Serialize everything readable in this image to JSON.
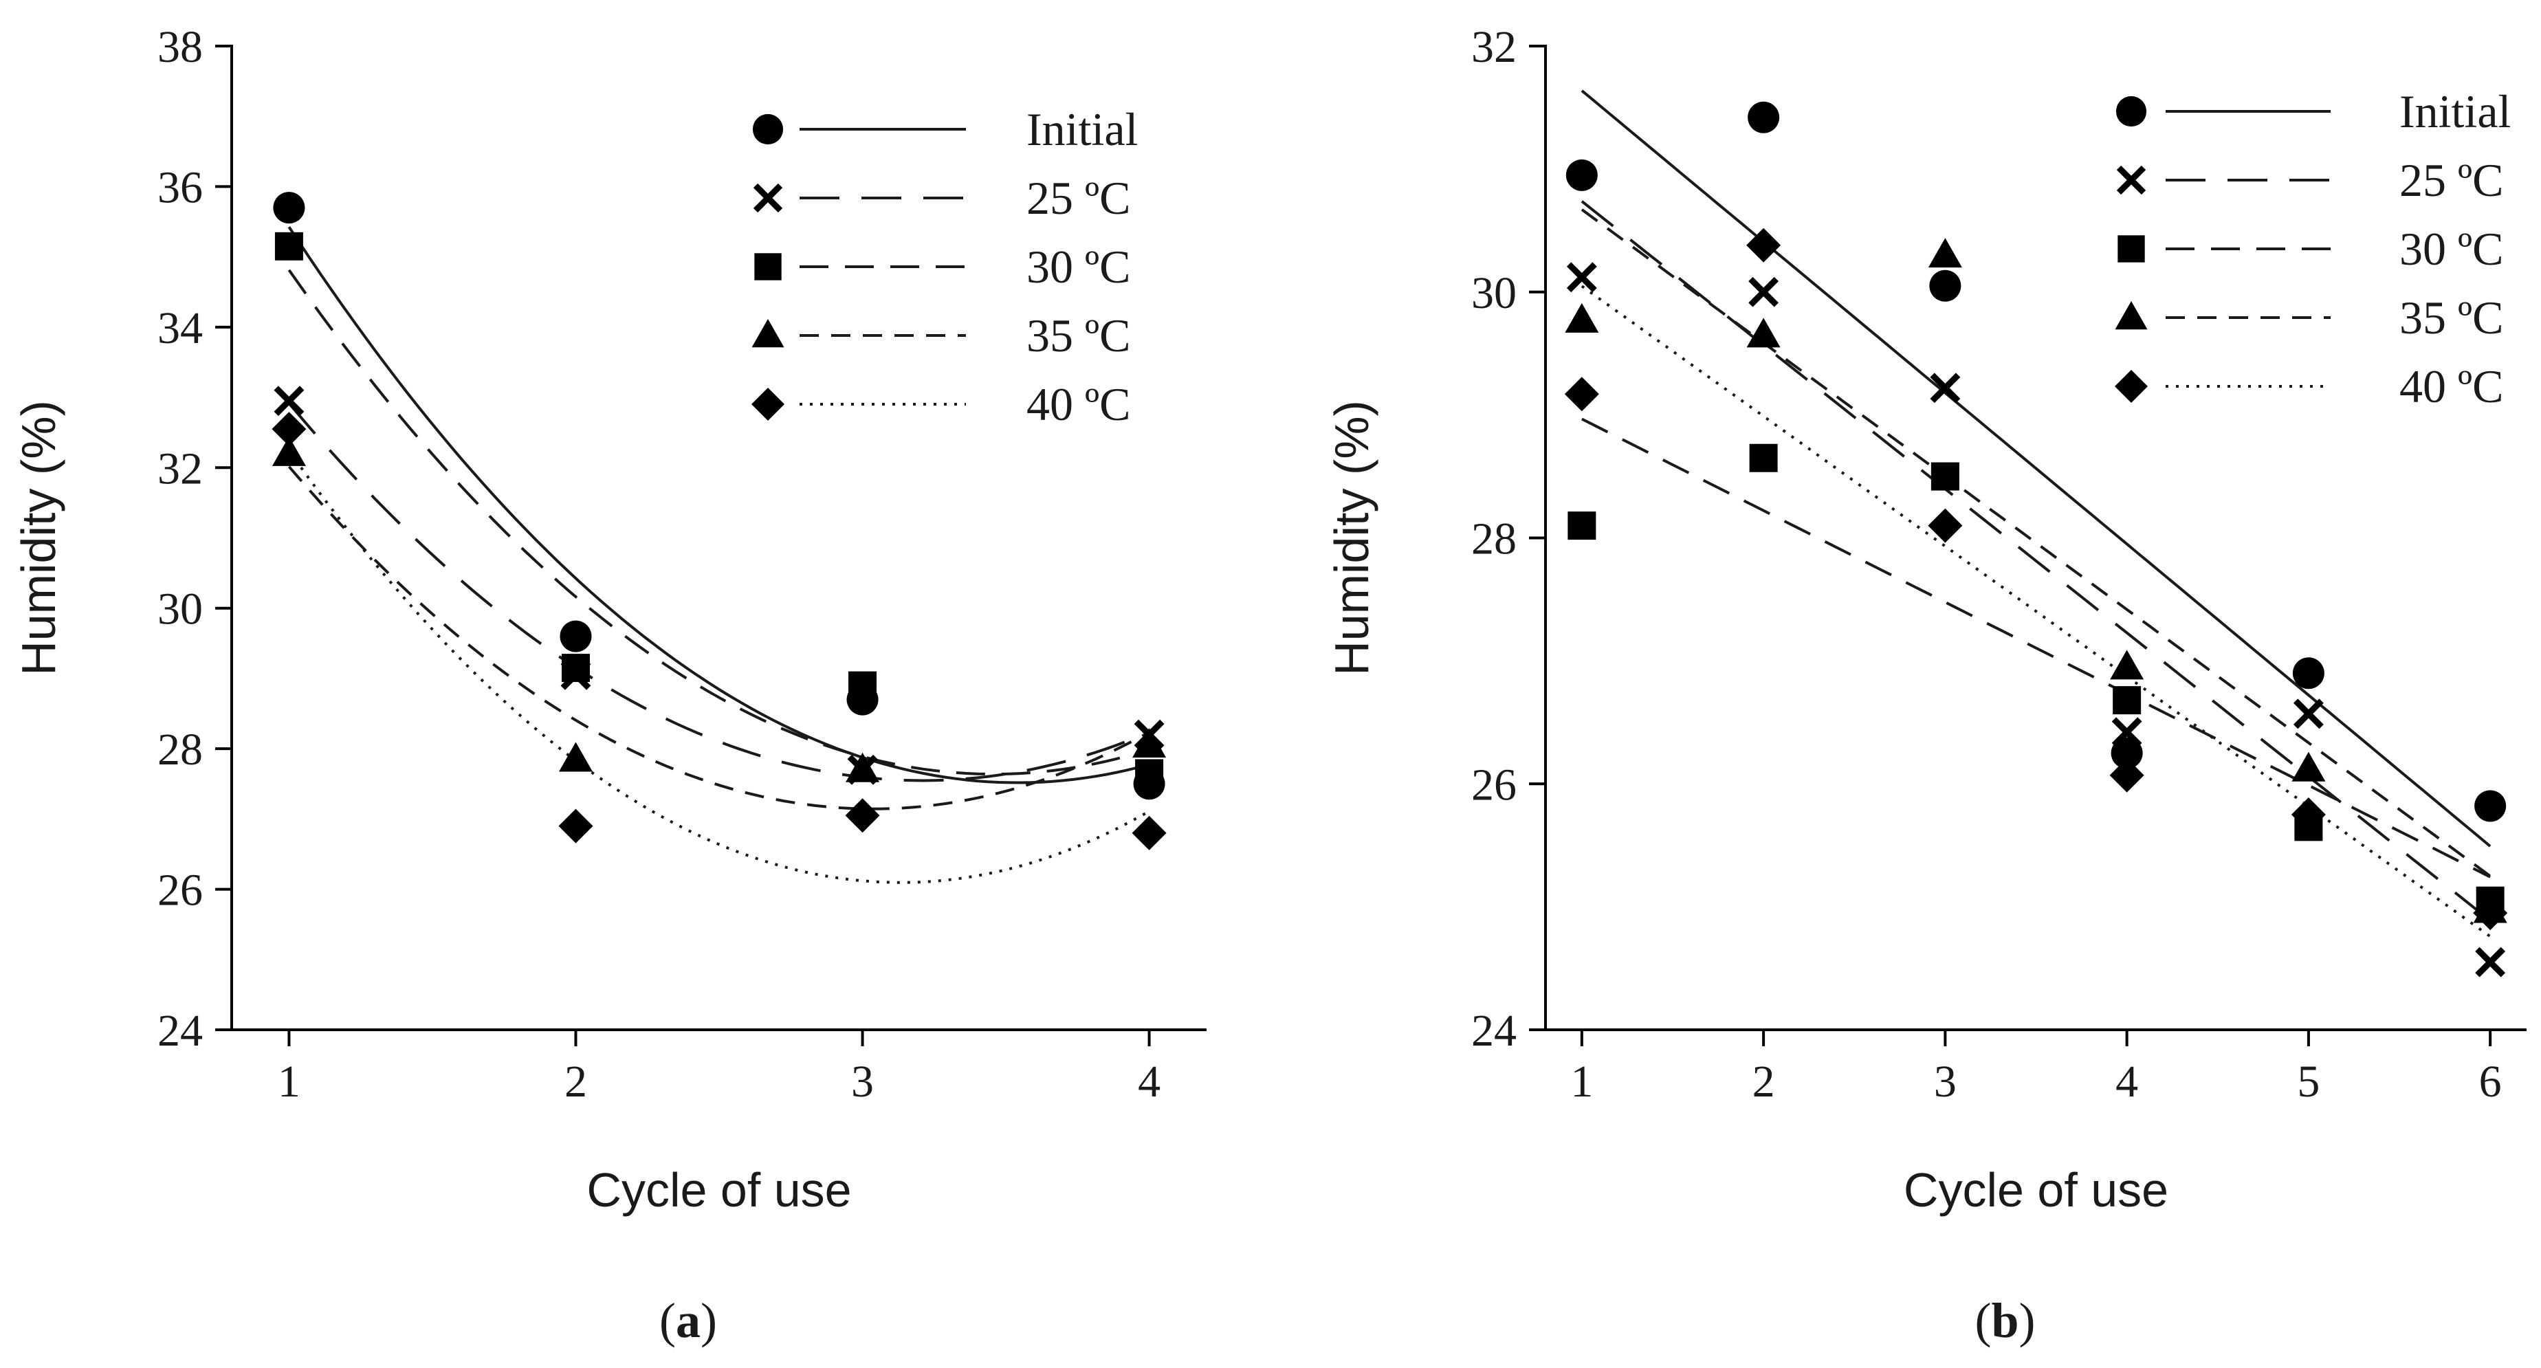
{
  "chart_data": [
    {
      "type": "scatter",
      "panel_label": {
        "open": "(",
        "letter": "a",
        "close": ")"
      },
      "xlabel": "Cycle of use",
      "ylabel": "Humidity (%)",
      "xlim": [
        0.8,
        4.2
      ],
      "ylim": [
        24,
        38
      ],
      "xticks": [
        1,
        2,
        3,
        4
      ],
      "yticks": [
        24,
        26,
        28,
        30,
        32,
        34,
        36,
        38
      ],
      "grid": false,
      "legend_position": "top-right",
      "fit": "quadratic",
      "x": [
        1,
        2,
        3,
        4
      ],
      "series": [
        {
          "name": "Initial",
          "marker": "circle",
          "line": "solid",
          "values": [
            35.7,
            29.6,
            28.7,
            27.5
          ]
        },
        {
          "name": "25 ºC",
          "marker": "x",
          "line": "long-dash",
          "values": [
            32.95,
            29.05,
            27.7,
            28.2
          ]
        },
        {
          "name": "30 ºC",
          "marker": "square",
          "line": "medium-dash",
          "values": [
            35.15,
            29.15,
            28.9,
            27.65
          ]
        },
        {
          "name": "35 ºC",
          "marker": "triangle",
          "line": "short-dash",
          "values": [
            32.2,
            27.85,
            27.7,
            28.05
          ]
        },
        {
          "name": "40 ºC",
          "marker": "diamond",
          "line": "dotted",
          "values": [
            32.55,
            26.9,
            27.05,
            26.8
          ]
        }
      ]
    },
    {
      "type": "scatter",
      "panel_label": {
        "open": "(",
        "letter": "b",
        "close": ")"
      },
      "xlabel": "Cycle of use",
      "ylabel": "Humidity (%)",
      "xlim": [
        0.8,
        6.2
      ],
      "ylim": [
        24,
        32
      ],
      "xticks": [
        1,
        2,
        3,
        4,
        5,
        6
      ],
      "yticks": [
        24,
        26,
        28,
        30,
        32
      ],
      "grid": false,
      "legend_position": "top-right",
      "fit": "linear",
      "x": [
        1,
        2,
        3,
        4,
        5,
        6
      ],
      "series": [
        {
          "name": "Initial",
          "marker": "circle",
          "line": "solid",
          "values": [
            30.95,
            31.42,
            30.05,
            26.25,
            26.9,
            25.82
          ]
        },
        {
          "name": "25 ºC",
          "marker": "x",
          "line": "long-dash",
          "values": [
            30.12,
            30.0,
            29.22,
            26.42,
            26.57,
            24.55
          ]
        },
        {
          "name": "30 ºC",
          "marker": "square",
          "line": "medium-dash",
          "values": [
            28.1,
            28.65,
            28.5,
            26.68,
            25.65,
            25.05
          ]
        },
        {
          "name": "35 ºC",
          "marker": "triangle",
          "line": "short-dash",
          "values": [
            29.77,
            29.65,
            30.3,
            26.95,
            26.12,
            24.97
          ]
        },
        {
          "name": "40 ºC",
          "marker": "diamond",
          "line": "dotted",
          "values": [
            29.17,
            30.38,
            28.1,
            26.07,
            25.75,
            24.95
          ]
        }
      ]
    }
  ]
}
